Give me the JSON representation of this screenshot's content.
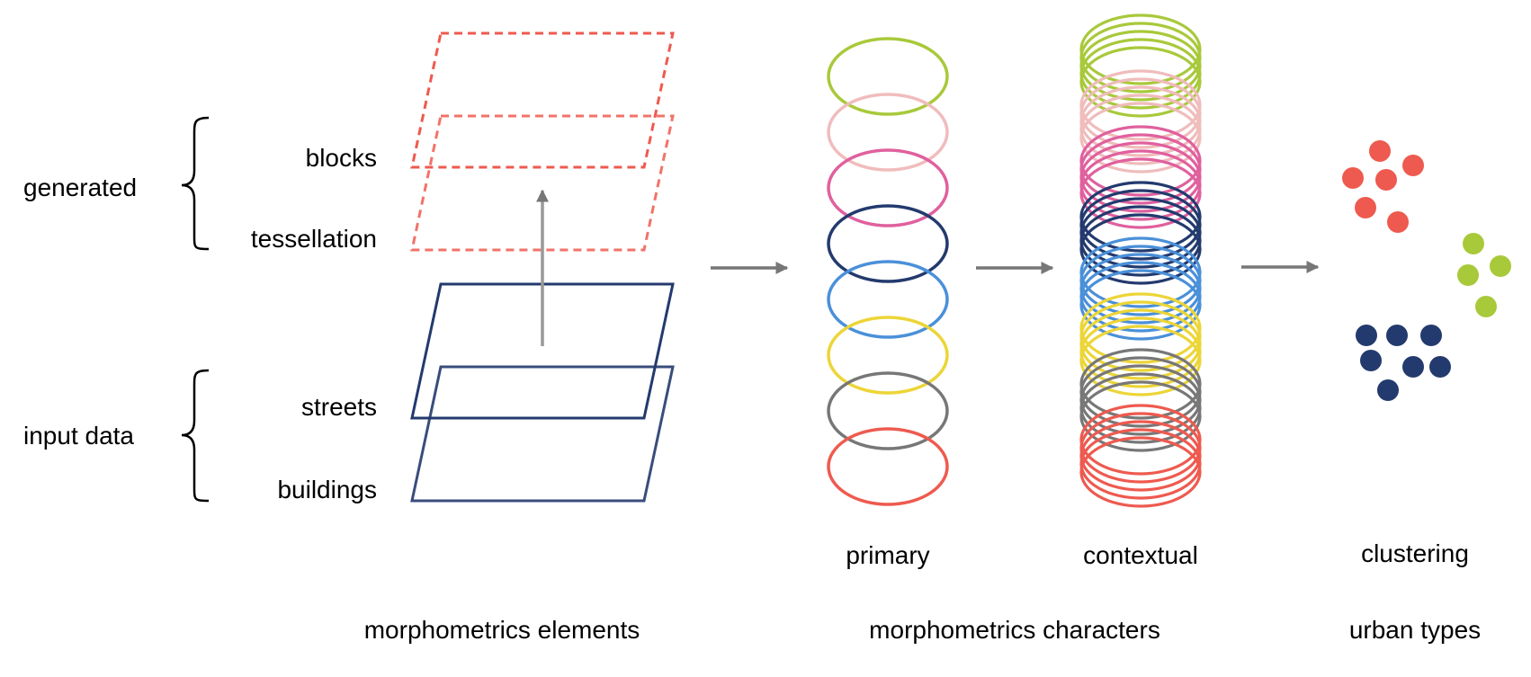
{
  "groups": {
    "generated": "generated",
    "input_data": "input data"
  },
  "layers": {
    "blocks": "blocks",
    "tessellation": "tessellation",
    "streets": "streets",
    "buildings": "buildings"
  },
  "sub_labels": {
    "primary": "primary",
    "contextual": "contextual",
    "clustering": "clustering"
  },
  "captions": {
    "elements": "morphometrics elements",
    "characters": "morphometrics characters",
    "types": "urban types"
  },
  "colors": {
    "navy": "#233a6e",
    "salmon": "#ee5a4f",
    "lime": "#a8c93a",
    "pink": "#f0bcbc",
    "magenta": "#e0609e",
    "blue": "#4a90d9",
    "yellow": "#ecd537",
    "gray": "#777777",
    "arrow": "#777777"
  },
  "character_rings": [
    "lime",
    "pink",
    "magenta",
    "navy",
    "blue",
    "yellow",
    "gray",
    "salmon"
  ],
  "clusters": [
    {
      "color": "salmon",
      "count": 6
    },
    {
      "color": "lime",
      "count": 4
    },
    {
      "color": "navy",
      "count": 7
    }
  ]
}
